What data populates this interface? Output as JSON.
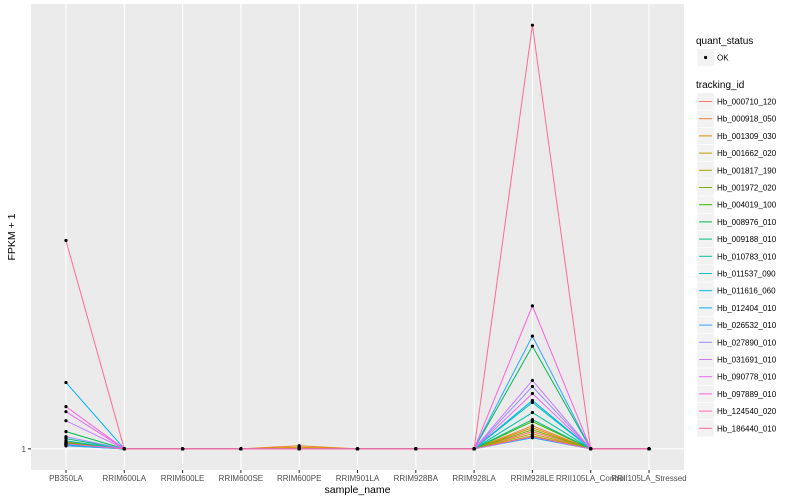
{
  "chart_data": {
    "type": "line",
    "xlabel": "sample_name",
    "ylabel": "FPKM + 1",
    "yscale": "log10",
    "ylim": [
      1,
      8
    ],
    "yticks": [
      1
    ],
    "ytick_labels": [
      "1"
    ],
    "grid": true,
    "legend_position": "right",
    "point_color": "#000000",
    "categories": [
      "PB350LA",
      "RRIM600LA",
      "RRIM600LE",
      "RRIM600SE",
      "RRIM600PE",
      "RRIM901LA",
      "RRIM928BA",
      "RRIM928LA",
      "RRIM928LE",
      "RRII105LA_Control",
      "RRII105LA_Stressed"
    ],
    "legend": {
      "quant_status_title": "quant_status",
      "quant_status_items": [
        "OK"
      ],
      "tracking_id_title": "tracking_id"
    },
    "series": [
      {
        "name": "Hb_000710_120",
        "color": "#F8766D",
        "values": [
          1.03,
          1,
          1,
          1,
          1,
          1,
          1,
          1,
          1.088,
          1,
          1
        ]
      },
      {
        "name": "Hb_000918_050",
        "color": "#EA8331",
        "values": [
          1.02,
          1,
          1,
          1,
          1.015,
          1,
          1,
          1,
          1.12,
          1,
          1
        ]
      },
      {
        "name": "Hb_001309_030",
        "color": "#D89000",
        "values": [
          1.025,
          1,
          1,
          1,
          1.008,
          1,
          1,
          1,
          1.109,
          1,
          1
        ]
      },
      {
        "name": "Hb_001662_020",
        "color": "#C09B00",
        "values": [
          1.035,
          1,
          1,
          1,
          1,
          1,
          1,
          1,
          1.077,
          1,
          1
        ]
      },
      {
        "name": "Hb_001817_190",
        "color": "#A3A500",
        "values": [
          1.02,
          1,
          1,
          1,
          1,
          1,
          1,
          1,
          1.066,
          1,
          1
        ]
      },
      {
        "name": "Hb_001972_020",
        "color": "#7CAE00",
        "values": [
          1.025,
          1,
          1,
          1,
          1,
          1,
          1,
          1,
          1.098,
          1,
          1
        ]
      },
      {
        "name": "Hb_004019_100",
        "color": "#39B600",
        "values": [
          1.03,
          1,
          1,
          1,
          1,
          1,
          1,
          1,
          1.143,
          1,
          1
        ]
      },
      {
        "name": "Hb_008976_010",
        "color": "#00BB4E",
        "values": [
          1.088,
          1,
          1,
          1,
          1,
          1,
          1,
          1,
          1.655,
          1,
          1
        ]
      },
      {
        "name": "Hb_009188_010",
        "color": "#00BF7D",
        "values": [
          1.051,
          1,
          1,
          1,
          1,
          1,
          1,
          1,
          1.154,
          1,
          1
        ]
      },
      {
        "name": "Hb_010783_010",
        "color": "#00C1A3",
        "values": [
          1.015,
          1,
          1,
          1,
          1,
          1,
          1,
          1,
          1.195,
          1,
          1
        ]
      },
      {
        "name": "Hb_011537_090",
        "color": "#00BFC4",
        "values": [
          1.04,
          1,
          1,
          1,
          1,
          1,
          1,
          1,
          1.255,
          1,
          1
        ]
      },
      {
        "name": "Hb_011616_060",
        "color": "#00BAE0",
        "values": [
          1.02,
          1,
          1,
          1,
          1,
          1,
          1,
          1,
          1.268,
          1,
          1
        ]
      },
      {
        "name": "Hb_012404_010",
        "color": "#00B0F6",
        "values": [
          1.385,
          1,
          1,
          1,
          1,
          1,
          1,
          1,
          1.056,
          1,
          1
        ]
      },
      {
        "name": "Hb_026532_010",
        "color": "#35A2FF",
        "values": [
          1.015,
          1,
          1,
          1,
          1,
          1,
          1,
          1,
          1.739,
          1,
          1
        ]
      },
      {
        "name": "Hb_027890_010",
        "color": "#9590FF",
        "values": [
          1.061,
          1,
          1,
          1,
          1,
          1,
          1,
          1,
          1.358,
          1,
          1
        ]
      },
      {
        "name": "Hb_031691_010",
        "color": "#C77CFF",
        "values": [
          1.148,
          1,
          1,
          1,
          1,
          1,
          1,
          1,
          1.399,
          1,
          1
        ]
      },
      {
        "name": "Hb_090778_010",
        "color": "#E76BF3",
        "values": [
          1.2,
          1,
          1,
          1,
          1,
          1,
          1,
          1,
          1.312,
          1,
          1
        ]
      },
      {
        "name": "Hb_097889_010",
        "color": "#FA62DB",
        "values": [
          1.23,
          1,
          1,
          1,
          1,
          1,
          1,
          1,
          2.017,
          1,
          1
        ]
      },
      {
        "name": "Hb_124540_020",
        "color": "#FF62BC",
        "values": [
          1.025,
          1,
          1,
          1,
          1,
          1,
          1,
          1,
          1.061,
          1,
          1
        ]
      },
      {
        "name": "Hb_186440_010",
        "color": "#FF6C91",
        "values": [
          2.78,
          1,
          1,
          1,
          1,
          1,
          1,
          1,
          8.0,
          1,
          1
        ]
      }
    ]
  }
}
